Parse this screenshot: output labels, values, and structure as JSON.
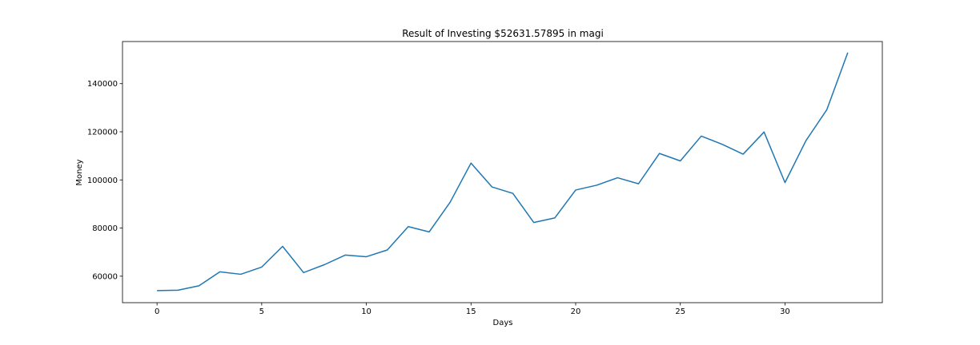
{
  "chart_data": {
    "type": "line",
    "title": "Result of Investing $52631.57895 in magi",
    "xlabel": "Days",
    "ylabel": "Money",
    "xlim": [
      -1.65,
      34.65
    ],
    "ylim": [
      49000,
      157500
    ],
    "x_ticks": [
      0,
      5,
      10,
      15,
      20,
      25,
      30
    ],
    "y_ticks": [
      60000,
      80000,
      100000,
      120000,
      140000
    ],
    "x_tick_labels": [
      "0",
      "5",
      "10",
      "15",
      "20",
      "25",
      "30"
    ],
    "y_tick_labels": [
      "60000",
      "80000",
      "100000",
      "120000",
      "140000"
    ],
    "grid": false,
    "series": [
      {
        "color": "#1f77b4",
        "x": [
          0,
          1,
          2,
          3,
          4,
          5,
          6,
          7,
          8,
          9,
          10,
          11,
          12,
          13,
          14,
          15,
          16,
          17,
          18,
          19,
          20,
          21,
          22,
          23,
          24,
          25,
          26,
          27,
          28,
          29,
          30,
          31,
          32,
          33
        ],
        "values": [
          54000,
          54200,
          56000,
          61800,
          60800,
          63800,
          72400,
          61500,
          64800,
          68800,
          68100,
          70900,
          80600,
          78400,
          90700,
          107000,
          97100,
          94400,
          82300,
          84200,
          95800,
          97800,
          100900,
          98400,
          111000,
          107900,
          118200,
          114800,
          110700,
          119900,
          98900,
          116300,
          129200,
          152900
        ]
      }
    ]
  }
}
